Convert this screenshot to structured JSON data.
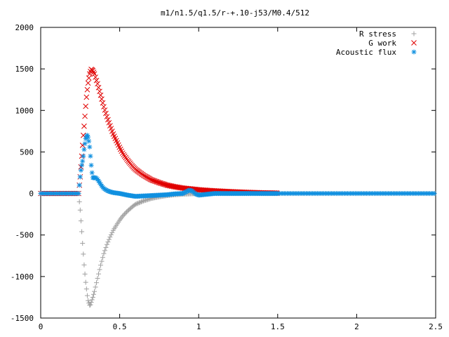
{
  "chart_data": {
    "type": "scatter",
    "title": "m1/n1.5/q1.5/r-+.10-j53/M0.4/512",
    "xlabel": "",
    "ylabel": "",
    "xlim": [
      0,
      2.5
    ],
    "ylim": [
      -1500,
      2000
    ],
    "x_ticks": [
      0,
      0.5,
      1,
      1.5,
      2,
      2.5
    ],
    "x_tick_labels": [
      "0",
      "0.5",
      "1",
      "1.5",
      "2",
      "2.5"
    ],
    "y_ticks": [
      -1500,
      -1000,
      -500,
      0,
      500,
      1000,
      1500,
      2000
    ],
    "y_tick_labels": [
      "-1500",
      "-1000",
      "-500",
      "0",
      "500",
      "1000",
      "1500",
      "2000"
    ],
    "grid": false,
    "legend_position": "top-right",
    "series": [
      {
        "name": "R stress",
        "marker": "+",
        "color": "#a0a0a0",
        "x": [
          0.0,
          0.1,
          0.2,
          0.24,
          0.245,
          0.25,
          0.255,
          0.26,
          0.265,
          0.27,
          0.275,
          0.28,
          0.285,
          0.29,
          0.295,
          0.3,
          0.305,
          0.31,
          0.315,
          0.32,
          0.33,
          0.34,
          0.35,
          0.36,
          0.37,
          0.38,
          0.39,
          0.4,
          0.42,
          0.44,
          0.46,
          0.48,
          0.5,
          0.52,
          0.55,
          0.58,
          0.6,
          0.65,
          0.7,
          0.75,
          0.8,
          0.85,
          0.9,
          0.95,
          1.0,
          1.1,
          1.2,
          1.3,
          1.4,
          1.5,
          1.75,
          2.0,
          2.25,
          2.5
        ],
        "y": [
          0,
          0,
          0,
          0,
          -100,
          -200,
          -330,
          -460,
          -600,
          -730,
          -860,
          -970,
          -1070,
          -1150,
          -1230,
          -1290,
          -1320,
          -1345,
          -1340,
          -1310,
          -1250,
          -1180,
          -1100,
          -1020,
          -940,
          -860,
          -790,
          -720,
          -610,
          -520,
          -440,
          -380,
          -320,
          -270,
          -210,
          -160,
          -130,
          -90,
          -60,
          -40,
          -25,
          -15,
          -8,
          -4,
          0,
          0,
          0,
          0,
          0,
          0,
          0,
          0,
          0,
          0
        ]
      },
      {
        "name": "G work",
        "marker": "x",
        "color": "#e00000",
        "x": [
          0.0,
          0.1,
          0.2,
          0.24,
          0.245,
          0.25,
          0.255,
          0.26,
          0.265,
          0.27,
          0.275,
          0.28,
          0.285,
          0.29,
          0.295,
          0.3,
          0.305,
          0.31,
          0.315,
          0.32,
          0.33,
          0.34,
          0.35,
          0.36,
          0.37,
          0.38,
          0.39,
          0.4,
          0.42,
          0.44,
          0.46,
          0.48,
          0.5,
          0.52,
          0.55,
          0.58,
          0.6,
          0.65,
          0.7,
          0.75,
          0.8,
          0.85,
          0.9,
          0.95,
          1.0,
          1.05,
          1.1,
          1.2,
          1.3,
          1.4,
          1.5
        ],
        "y": [
          0,
          0,
          0,
          0,
          100,
          200,
          320,
          450,
          580,
          700,
          810,
          930,
          1050,
          1160,
          1250,
          1330,
          1390,
          1440,
          1470,
          1495,
          1480,
          1440,
          1380,
          1320,
          1250,
          1180,
          1110,
          1040,
          920,
          810,
          710,
          630,
          550,
          480,
          400,
          330,
          290,
          220,
          165,
          130,
          100,
          80,
          65,
          55,
          45,
          38,
          32,
          22,
          14,
          8,
          5
        ]
      },
      {
        "name": "Acoustic flux",
        "marker": "*",
        "color": "#1090e0",
        "x": [
          0.0,
          0.1,
          0.2,
          0.24,
          0.245,
          0.25,
          0.255,
          0.26,
          0.265,
          0.27,
          0.275,
          0.28,
          0.285,
          0.29,
          0.295,
          0.3,
          0.305,
          0.31,
          0.315,
          0.32,
          0.325,
          0.33,
          0.34,
          0.35,
          0.36,
          0.37,
          0.38,
          0.39,
          0.4,
          0.42,
          0.44,
          0.46,
          0.48,
          0.5,
          0.55,
          0.6,
          0.65,
          0.7,
          0.75,
          0.8,
          0.85,
          0.9,
          0.92,
          0.94,
          0.96,
          0.98,
          1.0,
          1.05,
          1.1,
          1.2,
          1.3,
          1.4,
          1.5,
          1.75,
          2.0,
          2.25,
          2.5
        ],
        "y": [
          0,
          0,
          0,
          0,
          100,
          200,
          280,
          340,
          390,
          450,
          530,
          600,
          660,
          690,
          700,
          680,
          630,
          560,
          450,
          340,
          250,
          190,
          190,
          190,
          170,
          140,
          110,
          80,
          60,
          35,
          20,
          10,
          5,
          0,
          -20,
          -35,
          -30,
          -25,
          -20,
          -15,
          -5,
          0,
          20,
          40,
          30,
          -5,
          -20,
          -10,
          0,
          0,
          0,
          0,
          0,
          0,
          0,
          0,
          0
        ]
      }
    ]
  }
}
